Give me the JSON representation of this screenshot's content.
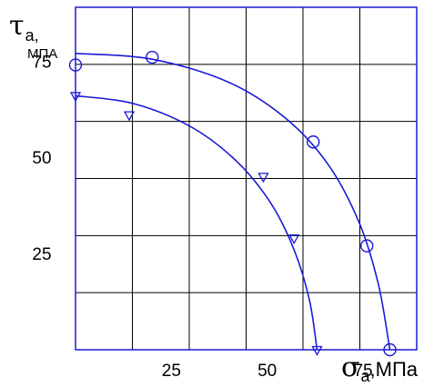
{
  "chart_data": {
    "type": "scatter",
    "xlabel": {
      "symbol": "σ",
      "subscript": "a",
      "unit": ",МПа"
    },
    "ylabel": {
      "symbol": "τ",
      "subscript": "a,",
      "unit": "МПА"
    },
    "xlim": [
      0,
      89
    ],
    "ylim": [
      0,
      89
    ],
    "x_ticks": [
      25,
      50,
      75
    ],
    "y_ticks": [
      25,
      50,
      75
    ],
    "grid": true,
    "colors": {
      "data": "#1a1ad6",
      "grid": "#000000",
      "frame": "#1a1ad6"
    },
    "series": [
      {
        "marker": "circle",
        "points": [
          {
            "x": 0,
            "y": 74
          },
          {
            "x": 20,
            "y": 76
          },
          {
            "x": 62,
            "y": 54
          },
          {
            "x": 76,
            "y": 27
          },
          {
            "x": 82,
            "y": 0
          }
        ],
        "curve": [
          {
            "x": 0,
            "y": 77
          },
          {
            "x": 20,
            "y": 75.5
          },
          {
            "x": 40,
            "y": 69.5
          },
          {
            "x": 55,
            "y": 60
          },
          {
            "x": 66,
            "y": 48
          },
          {
            "x": 74,
            "y": 33
          },
          {
            "x": 79,
            "y": 17
          },
          {
            "x": 82,
            "y": 0
          }
        ]
      },
      {
        "marker": "triangle-down",
        "points": [
          {
            "x": 0,
            "y": 66
          },
          {
            "x": 14,
            "y": 61
          },
          {
            "x": 49,
            "y": 45
          },
          {
            "x": 57,
            "y": 29
          },
          {
            "x": 63,
            "y": 0
          }
        ],
        "curve": [
          {
            "x": 0,
            "y": 66
          },
          {
            "x": 15,
            "y": 64
          },
          {
            "x": 30,
            "y": 58
          },
          {
            "x": 42,
            "y": 49
          },
          {
            "x": 51,
            "y": 38
          },
          {
            "x": 57,
            "y": 26
          },
          {
            "x": 61,
            "y": 13
          },
          {
            "x": 63,
            "y": 0
          }
        ]
      }
    ]
  }
}
